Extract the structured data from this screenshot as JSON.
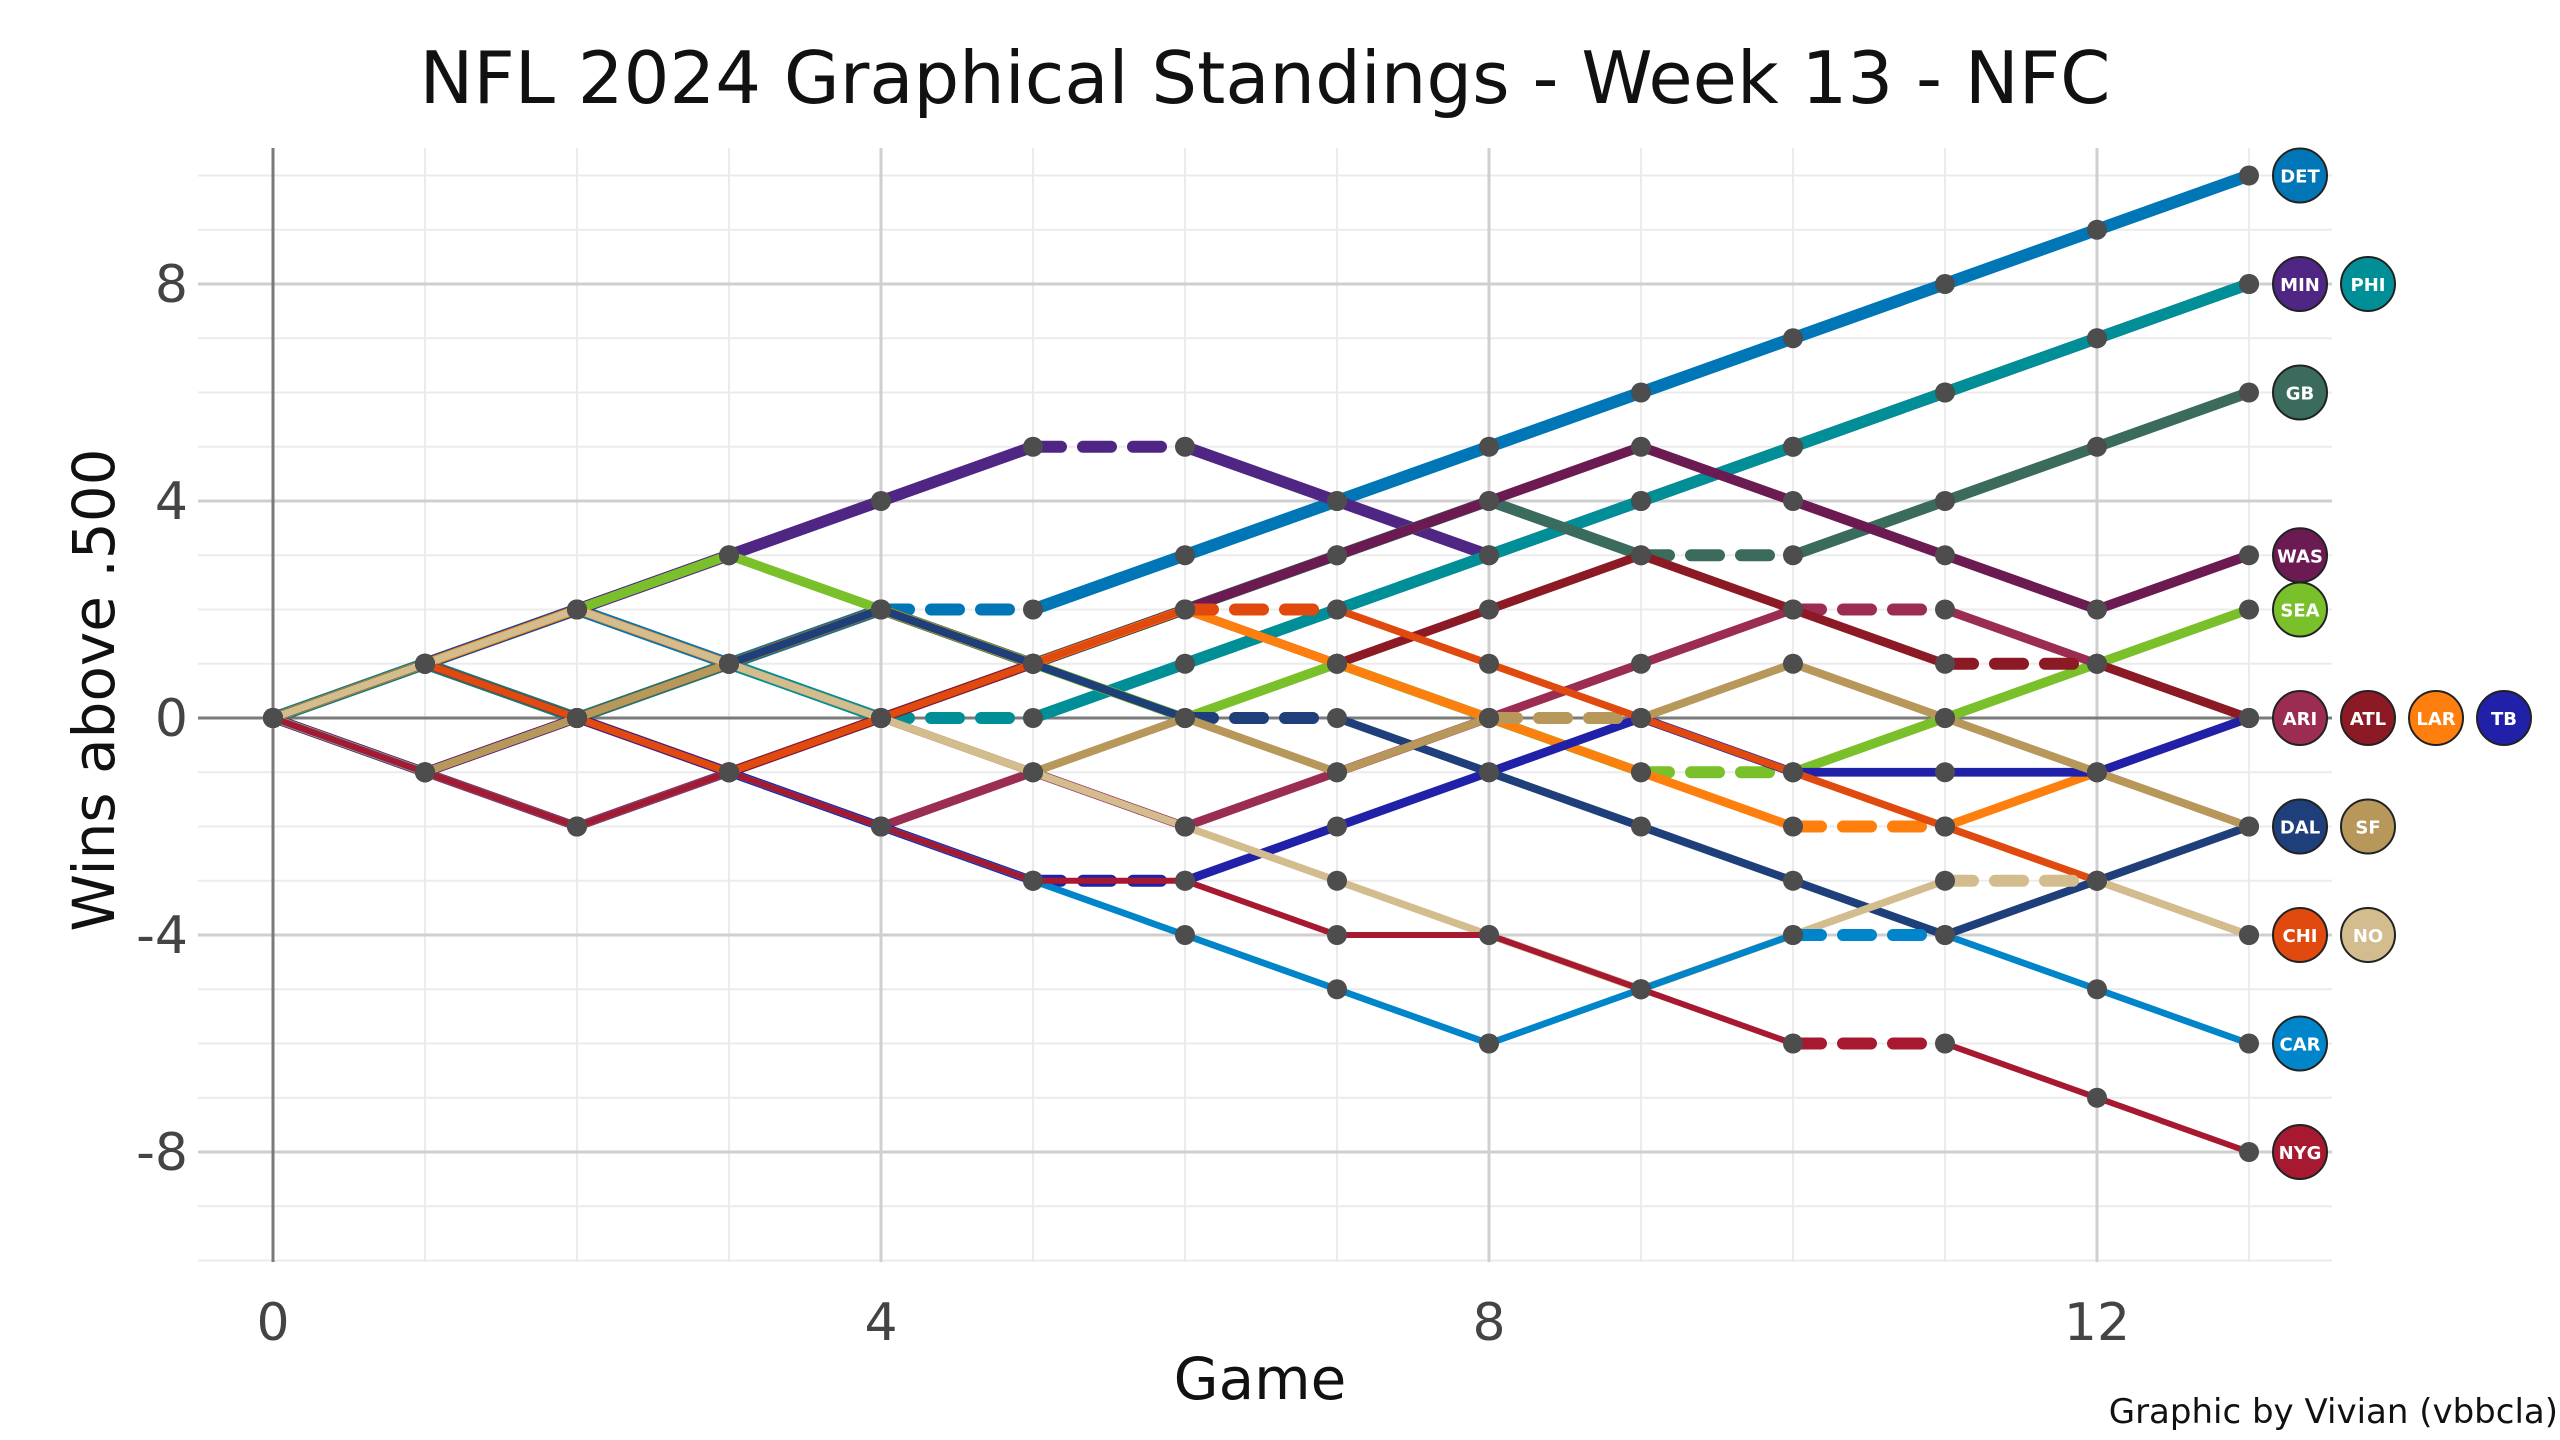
{
  "chart_data": {
    "type": "line",
    "title": "NFL 2024 Graphical Standings - Week 13 - NFC",
    "xlabel": "Game",
    "ylabel": "Wins above .500",
    "credit": "Graphic by Vivian (vbbcla)",
    "xlim": [
      0,
      13
    ],
    "ylim": [
      -10,
      10
    ],
    "x_ticks": [
      0,
      4,
      8,
      12
    ],
    "y_ticks": [
      -8,
      -4,
      0,
      4,
      8
    ],
    "y_tick_labels": [
      "-8",
      "-4",
      "0",
      "4",
      "8"
    ],
    "grid": true,
    "legend": "team logos at line ends (right)",
    "bye_marker": "dashed segment",
    "series": [
      {
        "team": "DET",
        "logo": "detroit-lions-logo",
        "color": "#0076B6",
        "values": [
          0,
          1,
          2,
          1,
          2,
          2,
          3,
          4,
          5,
          6,
          7,
          8,
          9,
          10
        ],
        "bye": [
          4,
          5
        ]
      },
      {
        "team": "MIN",
        "logo": "minnesota-vikings-logo",
        "color": "#4F2683",
        "values": [
          0,
          1,
          2,
          3,
          4,
          5,
          5,
          4,
          3,
          4,
          5,
          6,
          7,
          8
        ],
        "bye": [
          5,
          6
        ]
      },
      {
        "team": "PHI",
        "logo": "philadelphia-eagles-logo",
        "color": "#008E97",
        "values": [
          0,
          1,
          0,
          1,
          0,
          0,
          1,
          2,
          3,
          4,
          5,
          6,
          7,
          8
        ],
        "bye": [
          4,
          5
        ]
      },
      {
        "team": "GB",
        "logo": "green-bay-packers-logo",
        "color": "#3A6B5C",
        "values": [
          0,
          1,
          0,
          1,
          2,
          1,
          2,
          3,
          4,
          3,
          3,
          4,
          5,
          6
        ],
        "bye": [
          9,
          10
        ]
      },
      {
        "team": "WAS",
        "logo": "washington-commanders-logo",
        "color": "#6B1A52",
        "values": [
          0,
          -1,
          0,
          -1,
          0,
          1,
          2,
          3,
          4,
          5,
          4,
          3,
          2,
          3
        ],
        "bye": []
      },
      {
        "team": "SEA",
        "logo": "seattle-seahawks-logo",
        "color": "#7AC02A",
        "values": [
          0,
          1,
          2,
          3,
          2,
          1,
          0,
          1,
          0,
          -1,
          -1,
          0,
          1,
          2
        ],
        "bye": [
          9,
          10
        ]
      },
      {
        "team": "ARI",
        "logo": "arizona-cardinals-logo",
        "color": "#9B2C52",
        "values": [
          0,
          -1,
          -2,
          -1,
          -2,
          -1,
          -2,
          -1,
          0,
          1,
          2,
          2,
          1,
          0
        ],
        "bye": [
          10,
          11
        ]
      },
      {
        "team": "ATL",
        "logo": "atlanta-falcons-logo",
        "color": "#8B1A24",
        "values": [
          0,
          -1,
          0,
          -1,
          0,
          1,
          2,
          1,
          2,
          3,
          2,
          1,
          1,
          0
        ],
        "bye": [
          11,
          12
        ]
      },
      {
        "team": "LAR",
        "logo": "los-angeles-rams-logo",
        "color": "#FF7F0E",
        "values": [
          0,
          1,
          2,
          1,
          2,
          1,
          2,
          1,
          0,
          -1,
          -2,
          -2,
          -1,
          0
        ],
        "bye": [
          10,
          11
        ]
      },
      {
        "team": "TB",
        "logo": "tampa-bay-buccaneers-logo",
        "color": "#2020A8",
        "values": [
          0,
          -1,
          0,
          -1,
          -2,
          -3,
          -3,
          -2,
          -1,
          0,
          -1,
          -1,
          -1,
          0
        ],
        "bye": [
          5,
          6
        ]
      },
      {
        "team": "DAL",
        "logo": "dallas-cowboys-logo",
        "color": "#1F3F7A",
        "values": [
          0,
          1,
          0,
          1,
          2,
          1,
          0,
          0,
          -1,
          -2,
          -3,
          -4,
          -3,
          -2
        ],
        "bye": [
          6,
          7
        ]
      },
      {
        "team": "SF",
        "logo": "san-francisco-49ers-logo",
        "color": "#B8975A",
        "values": [
          0,
          -1,
          0,
          1,
          0,
          -1,
          0,
          -1,
          0,
          0,
          1,
          0,
          -1,
          -2
        ],
        "bye": [
          8,
          9
        ]
      },
      {
        "team": "CHI",
        "logo": "chicago-bears-logo",
        "color": "#E04A0E",
        "values": [
          0,
          1,
          0,
          -1,
          0,
          1,
          2,
          2,
          1,
          0,
          -1,
          -2,
          -3,
          -4
        ],
        "bye": [
          6,
          7
        ]
      },
      {
        "team": "NO",
        "logo": "new-orleans-saints-logo",
        "color": "#D3BC8D",
        "values": [
          0,
          1,
          2,
          1,
          0,
          -1,
          -2,
          -3,
          -4,
          -5,
          -4,
          -3,
          -3,
          -4
        ],
        "bye": [
          11,
          12
        ]
      },
      {
        "team": "CAR",
        "logo": "carolina-panthers-logo",
        "color": "#0085CA",
        "values": [
          0,
          -1,
          -2,
          -1,
          -2,
          -3,
          -4,
          -5,
          -6,
          -5,
          -4,
          -4,
          -5,
          -6
        ],
        "bye": [
          10,
          11
        ]
      },
      {
        "team": "NYG",
        "logo": "new-york-giants-logo",
        "color": "#A71930",
        "values": [
          0,
          -1,
          -2,
          -1,
          -2,
          -3,
          -3,
          -4,
          -4,
          -5,
          -6,
          -6,
          -7,
          -8
        ],
        "bye": [
          10,
          11
        ]
      }
    ],
    "end_logo_groups": [
      {
        "value": 10,
        "teams": [
          "DET"
        ]
      },
      {
        "value": 8,
        "teams": [
          "MIN",
          "PHI"
        ]
      },
      {
        "value": 6,
        "teams": [
          "GB"
        ]
      },
      {
        "value": 3,
        "teams": [
          "WAS"
        ]
      },
      {
        "value": 2,
        "teams": [
          "SEA"
        ]
      },
      {
        "value": 0,
        "teams": [
          "ARI",
          "ATL",
          "LAR",
          "TB"
        ]
      },
      {
        "value": -2,
        "teams": [
          "DAL",
          "SF"
        ]
      },
      {
        "value": -4,
        "teams": [
          "CHI",
          "NO"
        ]
      },
      {
        "value": -6,
        "teams": [
          "CAR"
        ]
      },
      {
        "value": -8,
        "teams": [
          "NYG"
        ]
      }
    ]
  }
}
